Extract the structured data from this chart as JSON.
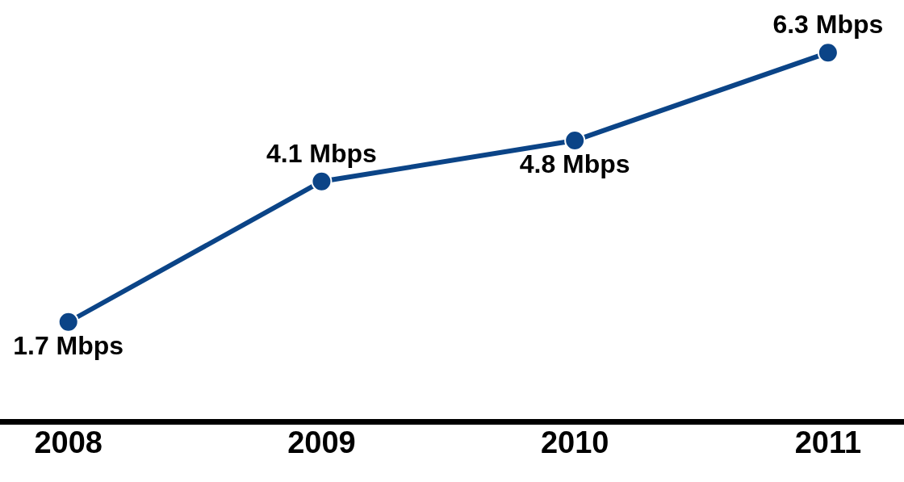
{
  "chart_data": {
    "type": "line",
    "categories": [
      "2008",
      "2009",
      "2010",
      "2011"
    ],
    "series": [
      {
        "color": "#0b4487",
        "values": [
          1.7,
          4.1,
          4.8,
          6.3
        ],
        "value_labels": [
          "1.7 Mbps",
          "4.1 Mbps",
          "4.8 Mbps",
          "6.3 Mbps"
        ]
      }
    ],
    "ylim": [
      0,
      7.2
    ],
    "marker": "circle",
    "line_style": "solid",
    "legend": false,
    "tick_labels": "x"
  }
}
